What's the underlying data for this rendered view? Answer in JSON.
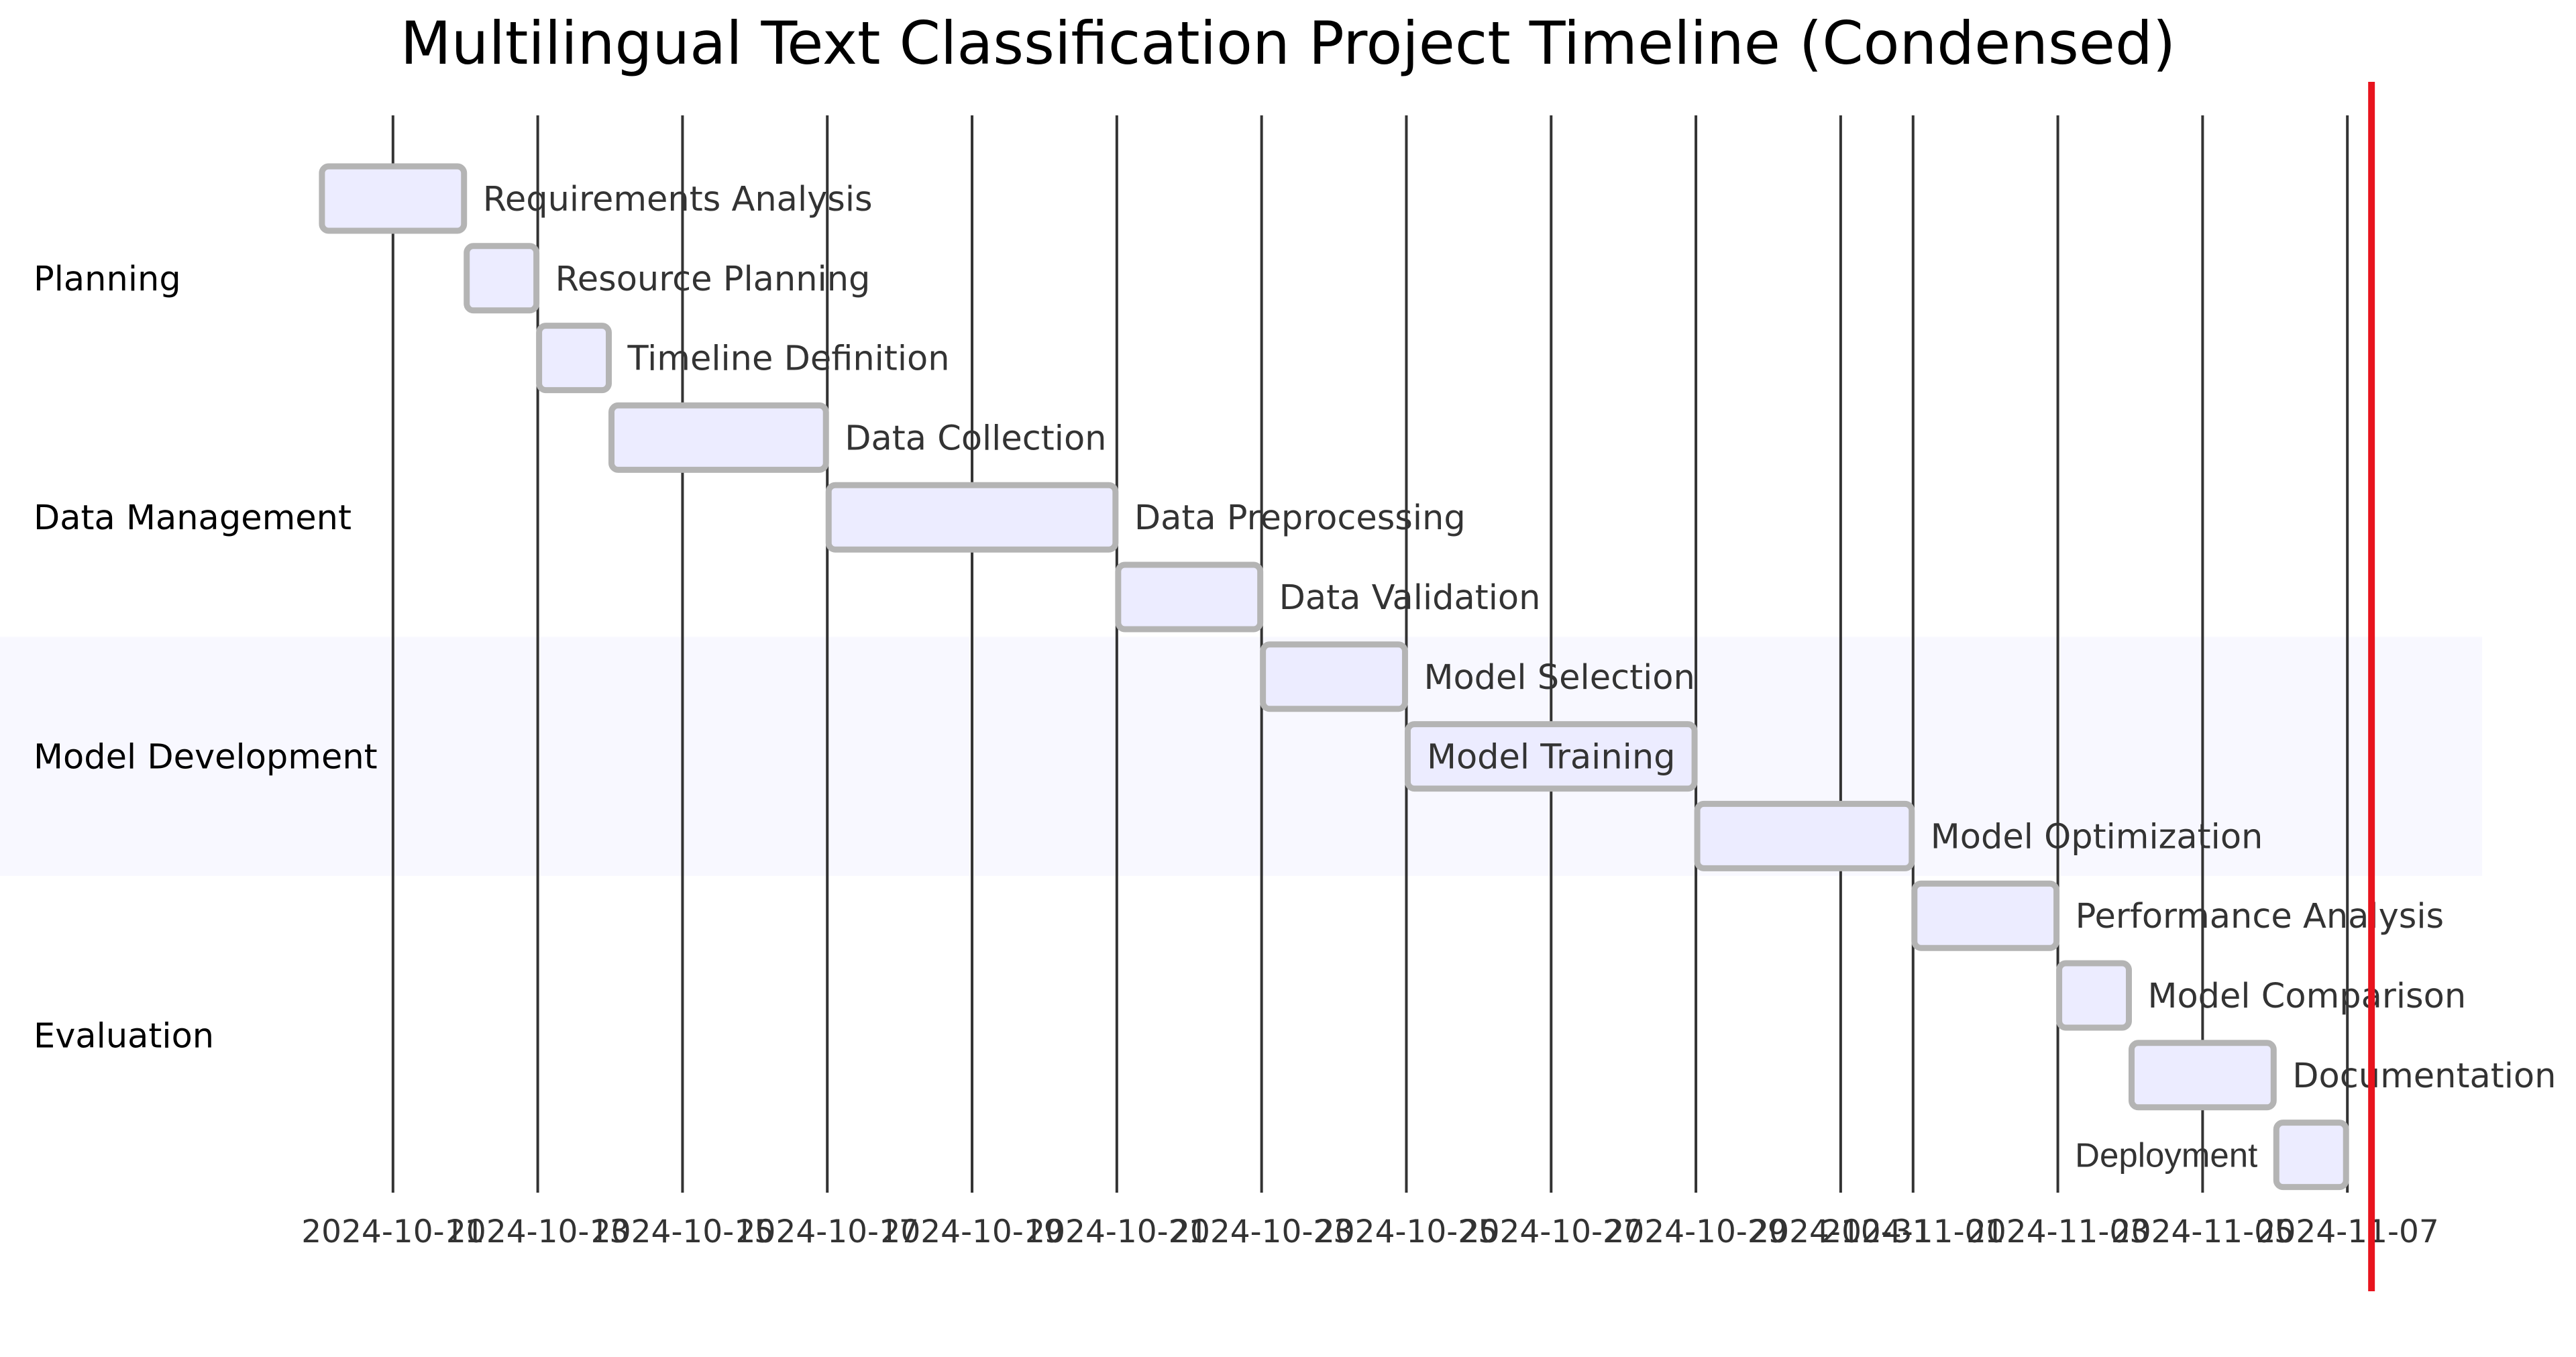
{
  "chart_data": {
    "type": "gantt",
    "title": "Multilingual Text Classification Project Timeline (Condensed)",
    "x_range": [
      "2024-10-09",
      "2024-11-09"
    ],
    "x_ticks": [
      "2024-10-11",
      "2024-10-13",
      "2024-10-15",
      "2024-10-17",
      "2024-10-19",
      "2024-10-21",
      "2024-10-23",
      "2024-10-25",
      "2024-10-27",
      "2024-10-29",
      "2024-10-31",
      "2024-11-01",
      "2024-11-03",
      "2024-11-05",
      "2024-11-07"
    ],
    "tick_labels": [
      "2024-10-11",
      "2024-10-13",
      "2024-10-15",
      "2024-10-17",
      "2024-10-19",
      "2024-10-21",
      "2024-10-23",
      "2024-10-25",
      "2024-10-27",
      "2024-10-29",
      "2024-10-31",
      "2024-11-01",
      "2024-11-03",
      "2024-11-05",
      "2024-11-07"
    ],
    "today": "2024-11-07T08:00",
    "sections": [
      {
        "name": "Planning",
        "tasks": [
          "Requirements Analysis",
          "Resource Planning",
          "Timeline Definition"
        ],
        "highlighted": false
      },
      {
        "name": "Data Management",
        "tasks": [
          "Data Collection",
          "Data Preprocessing",
          "Data Validation"
        ],
        "highlighted": false
      },
      {
        "name": "Model Development",
        "tasks": [
          "Model Selection",
          "Model Training",
          "Model Optimization"
        ],
        "highlighted": true
      },
      {
        "name": "Evaluation",
        "tasks": [
          "Performance Analysis",
          "Model Comparison",
          "Documentation",
          "Deployment"
        ],
        "highlighted": false
      }
    ],
    "tasks": [
      {
        "name": "Requirements Analysis",
        "section": "Planning",
        "start": "2024-10-10",
        "end": "2024-10-12"
      },
      {
        "name": "Resource Planning",
        "section": "Planning",
        "start": "2024-10-12",
        "end": "2024-10-13"
      },
      {
        "name": "Timeline Definition",
        "section": "Planning",
        "start": "2024-10-13",
        "end": "2024-10-14"
      },
      {
        "name": "Data Collection",
        "section": "Data Management",
        "start": "2024-10-14",
        "end": "2024-10-17"
      },
      {
        "name": "Data Preprocessing",
        "section": "Data Management",
        "start": "2024-10-17",
        "end": "2024-10-21"
      },
      {
        "name": "Data Validation",
        "section": "Data Management",
        "start": "2024-10-21",
        "end": "2024-10-23"
      },
      {
        "name": "Model Selection",
        "section": "Model Development",
        "start": "2024-10-23",
        "end": "2024-10-25"
      },
      {
        "name": "Model Training",
        "section": "Model Development",
        "start": "2024-10-25",
        "end": "2024-10-29"
      },
      {
        "name": "Model Optimization",
        "section": "Model Development",
        "start": "2024-10-29",
        "end": "2024-11-01"
      },
      {
        "name": "Performance Analysis",
        "section": "Evaluation",
        "start": "2024-11-01",
        "end": "2024-11-03"
      },
      {
        "name": "Model Comparison",
        "section": "Evaluation",
        "start": "2024-11-03",
        "end": "2024-11-04"
      },
      {
        "name": "Documentation",
        "section": "Evaluation",
        "start": "2024-11-04",
        "end": "2024-11-06"
      },
      {
        "name": "Deployment",
        "section": "Evaluation",
        "start": "2024-11-06",
        "end": "2024-11-07"
      }
    ]
  },
  "colors": {
    "bar_fill": "#ececff",
    "bar_stroke": "#b4b4b4",
    "grid": "#333333",
    "today_line": "#e8141e",
    "section_highlight": "#f8f8ff",
    "text": "#333333"
  }
}
